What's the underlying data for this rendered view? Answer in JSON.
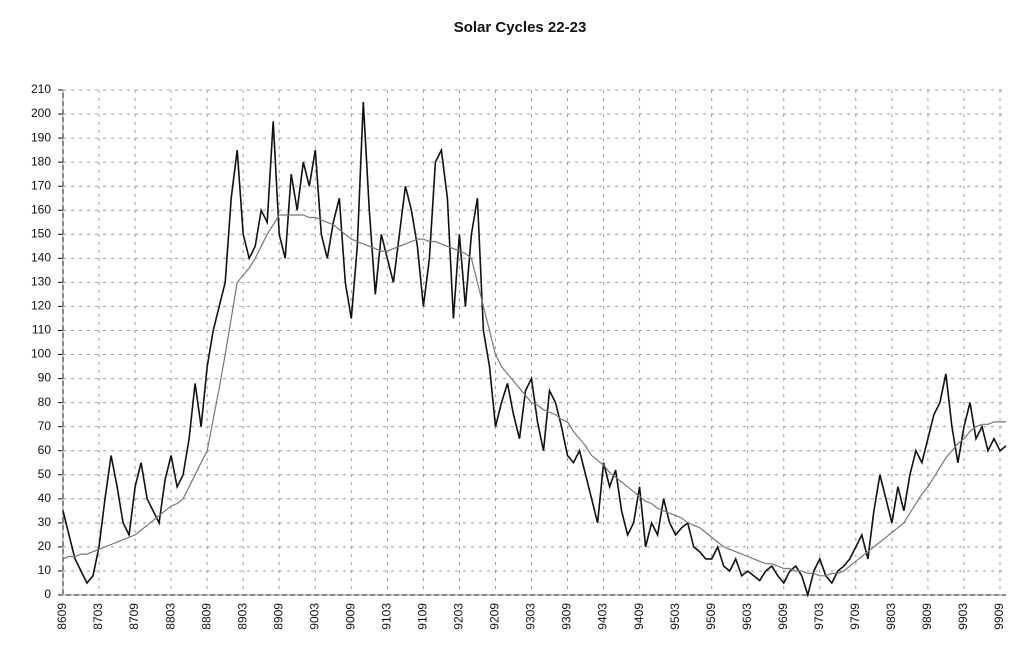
{
  "chart_data": {
    "type": "line",
    "title": "Solar Cycles 22-23",
    "categories": [
      "8609",
      null,
      null,
      null,
      null,
      null,
      "8703",
      null,
      null,
      null,
      null,
      null,
      "8709",
      null,
      null,
      null,
      null,
      null,
      "8803",
      null,
      null,
      null,
      null,
      null,
      "8809",
      null,
      null,
      null,
      null,
      null,
      "8903",
      null,
      null,
      null,
      null,
      null,
      "8909",
      null,
      null,
      null,
      null,
      null,
      "9003",
      null,
      null,
      null,
      null,
      null,
      "9009",
      null,
      null,
      null,
      null,
      null,
      "9103",
      null,
      null,
      null,
      null,
      null,
      "9109",
      null,
      null,
      null,
      null,
      null,
      "9203",
      null,
      null,
      null,
      null,
      null,
      "9209",
      null,
      null,
      null,
      null,
      null,
      "9303",
      null,
      null,
      null,
      null,
      null,
      "9309",
      null,
      null,
      null,
      null,
      null,
      "9403",
      null,
      null,
      null,
      null,
      null,
      "9409",
      null,
      null,
      null,
      null,
      null,
      "9503",
      null,
      null,
      null,
      null,
      null,
      "9509",
      null,
      null,
      null,
      null,
      null,
      "9603",
      null,
      null,
      null,
      null,
      null,
      "9609",
      null,
      null,
      null,
      null,
      null,
      "9703",
      null,
      null,
      null,
      null,
      null,
      "9709",
      null,
      null,
      null,
      null,
      null,
      "9803",
      null,
      null,
      null,
      null,
      null,
      "9809",
      null,
      null,
      null,
      null,
      null,
      "9903",
      null,
      null,
      null,
      null,
      null,
      "9909",
      null
    ],
    "series": [
      {
        "color": "#111",
        "values": [
          35,
          25,
          15,
          10,
          5,
          8,
          20,
          40,
          58,
          45,
          30,
          25,
          45,
          55,
          40,
          35,
          30,
          48,
          58,
          45,
          50,
          65,
          88,
          70,
          95,
          110,
          120,
          130,
          165,
          185,
          150,
          140,
          145,
          160,
          155,
          197,
          150,
          140,
          175,
          160,
          180,
          170,
          185,
          150,
          140,
          155,
          165,
          130,
          115,
          145,
          205,
          160,
          125,
          150,
          140,
          130,
          150,
          170,
          160,
          145,
          120,
          140,
          180,
          185,
          165,
          115,
          150,
          120,
          150,
          165,
          110,
          95,
          70,
          80,
          88,
          75,
          65,
          85,
          90,
          72,
          60,
          85,
          80,
          70,
          58,
          55,
          60,
          50,
          40,
          30,
          55,
          45,
          52,
          35,
          25,
          30,
          45,
          20,
          30,
          25,
          40,
          30,
          25,
          28,
          30,
          20,
          18,
          15,
          15,
          20,
          12,
          10,
          15,
          8,
          10,
          8,
          6,
          10,
          12,
          8,
          5,
          10,
          12,
          8,
          0,
          10,
          15,
          8,
          5,
          10,
          12,
          15,
          20,
          25,
          15,
          35,
          50,
          40,
          30,
          45,
          35,
          50,
          60,
          55,
          65,
          75,
          80,
          92,
          70,
          55,
          70,
          80,
          65,
          70,
          60,
          65,
          60,
          62
        ]
      },
      {
        "color": "#777",
        "values": [
          15,
          16,
          16,
          17,
          17,
          18,
          19,
          20,
          21,
          22,
          23,
          24,
          25,
          27,
          29,
          31,
          33,
          35,
          37,
          38,
          40,
          45,
          50,
          55,
          60,
          73,
          86,
          100,
          115,
          130,
          133,
          136,
          140,
          145,
          150,
          154,
          158,
          158,
          158,
          158,
          158,
          157,
          157,
          156,
          155,
          154,
          152,
          150,
          148,
          147,
          146,
          145,
          144,
          143,
          143,
          144,
          145,
          146,
          147,
          148,
          148,
          147,
          147,
          146,
          145,
          144,
          143,
          142,
          140,
          130,
          120,
          110,
          100,
          95,
          92,
          89,
          86,
          83,
          80,
          79,
          77,
          76,
          75,
          73,
          72,
          68,
          65,
          62,
          58,
          56,
          54,
          51,
          49,
          47,
          45,
          43,
          41,
          39,
          38,
          36,
          35,
          34,
          33,
          32,
          30,
          29,
          28,
          26,
          24,
          22,
          20,
          19,
          18,
          17,
          16,
          15,
          14,
          13,
          13,
          12,
          11,
          11,
          10,
          10,
          9,
          9,
          8,
          8,
          9,
          9,
          10,
          12,
          14,
          16,
          18,
          20,
          22,
          24,
          26,
          28,
          30,
          34,
          38,
          42,
          45,
          49,
          53,
          57,
          60,
          63,
          65,
          68,
          70,
          71,
          71,
          72,
          72,
          72
        ]
      }
    ],
    "ylim": [
      0,
      210
    ],
    "yticks": [
      0,
      10,
      20,
      30,
      40,
      50,
      60,
      70,
      80,
      90,
      100,
      110,
      120,
      130,
      140,
      150,
      160,
      170,
      180,
      190,
      200,
      210
    ],
    "grid": true
  }
}
